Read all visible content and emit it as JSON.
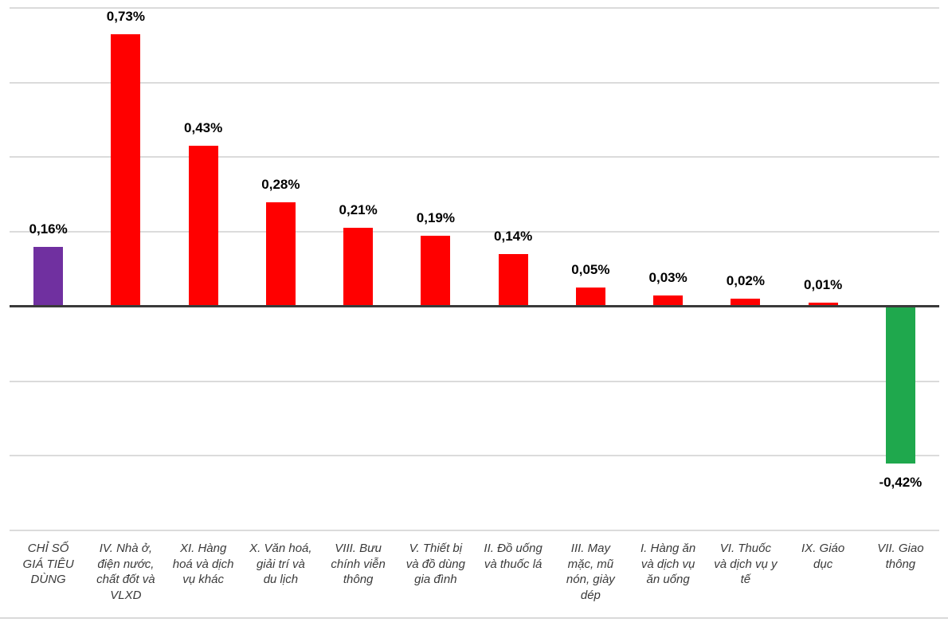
{
  "chart_data": {
    "type": "bar",
    "title": "",
    "xlabel": "",
    "ylabel": "",
    "legend": "none",
    "grid": true,
    "ylim": [
      -0.6,
      0.8
    ],
    "gridline_step": 0.2,
    "value_suffix": "%",
    "decimal_separator": ",",
    "categories": [
      "CHỈ SỐ\nGIÁ TIÊU\nDÙNG",
      "IV. Nhà ở,\nđiện nước,\nchất đốt và\nVLXD",
      "XI. Hàng\nhoá và dịch\nvụ khác",
      "X. Văn hoá,\ngiải trí và\ndu lịch",
      "VIII. Bưu\nchính viễn\nthông",
      "V. Thiết bị\nvà đồ dùng\ngia đình",
      "II. Đồ uống\nvà thuốc lá",
      "III. May\nmặc, mũ\nnón, giày\ndép",
      "I. Hàng ăn\nvà dịch vụ\năn uống",
      "VI. Thuốc\nvà dịch vụ y\ntế",
      "IX. Giáo\ndục",
      "VII. Giao\nthông"
    ],
    "values": [
      0.16,
      0.73,
      0.43,
      0.28,
      0.21,
      0.19,
      0.14,
      0.05,
      0.03,
      0.02,
      0.01,
      -0.42
    ],
    "value_labels": [
      "0,16%",
      "0,73%",
      "0,43%",
      "0,28%",
      "0,21%",
      "0,19%",
      "0,14%",
      "0,05%",
      "0,03%",
      "0,02%",
      "0,01%",
      "-0,42%"
    ],
    "bar_colors": [
      "#7030A0",
      "#FF0000",
      "#FF0000",
      "#FF0000",
      "#FF0000",
      "#FF0000",
      "#FF0000",
      "#FF0000",
      "#FF0000",
      "#FF0000",
      "#FF0000",
      "#1FA84D"
    ],
    "accent_colors": {
      "cpi_total": "#7030A0",
      "increase": "#FF0000",
      "decrease": "#1FA84D",
      "gridline": "#DBDBDB",
      "zero_axis": "#3A3A3A",
      "value_label_text": "#000000",
      "category_label_text": "#3A3A3A"
    }
  }
}
